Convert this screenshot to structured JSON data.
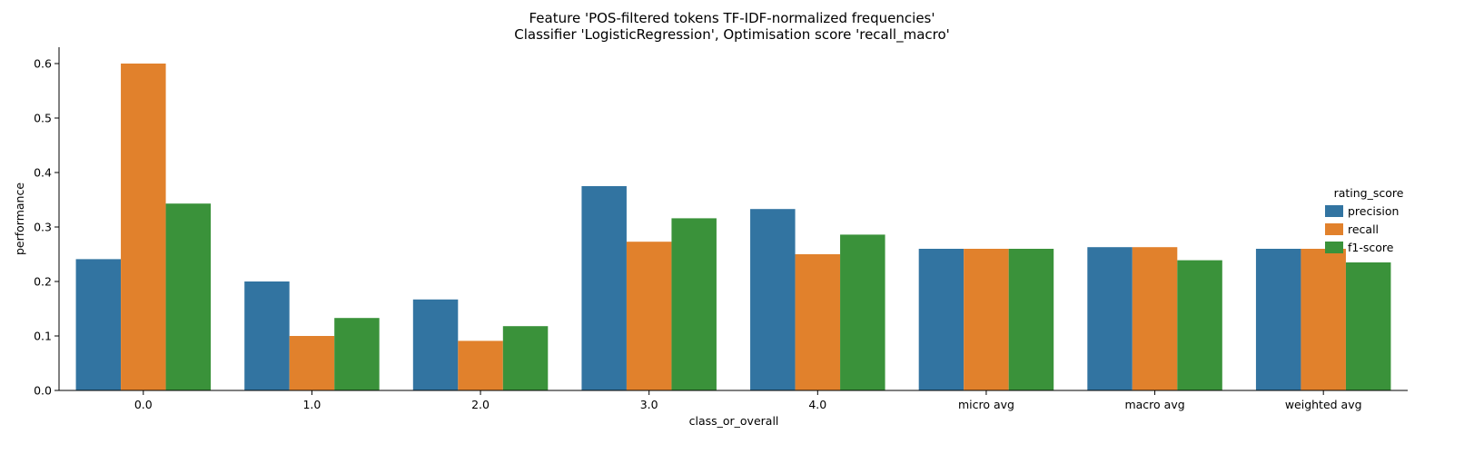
{
  "chart_data": {
    "type": "bar",
    "title": "Feature 'POS-filtered tokens TF-IDF-normalized frequencies'",
    "subtitle": "Classifier 'LogisticRegression', Optimisation score 'recall_macro'",
    "xlabel": "class_or_overall",
    "ylabel": "performance",
    "ylim": [
      0,
      0.63
    ],
    "yticks": [
      "0.0",
      "0.1",
      "0.2",
      "0.3",
      "0.4",
      "0.5",
      "0.6"
    ],
    "categories": [
      "0.0",
      "1.0",
      "2.0",
      "3.0",
      "4.0",
      "micro avg",
      "macro avg",
      "weighted avg"
    ],
    "legend_title": "rating_score",
    "legend_position": "right",
    "grid": false,
    "series": [
      {
        "name": "precision",
        "color": "#3274a1",
        "values": [
          0.241,
          0.2,
          0.167,
          0.375,
          0.333,
          0.26,
          0.263,
          0.26
        ]
      },
      {
        "name": "recall",
        "color": "#e1812c",
        "values": [
          0.6,
          0.1,
          0.091,
          0.273,
          0.25,
          0.26,
          0.263,
          0.26
        ]
      },
      {
        "name": "f1-score",
        "color": "#3a923a",
        "values": [
          0.343,
          0.133,
          0.118,
          0.316,
          0.286,
          0.26,
          0.239,
          0.235
        ]
      }
    ]
  }
}
